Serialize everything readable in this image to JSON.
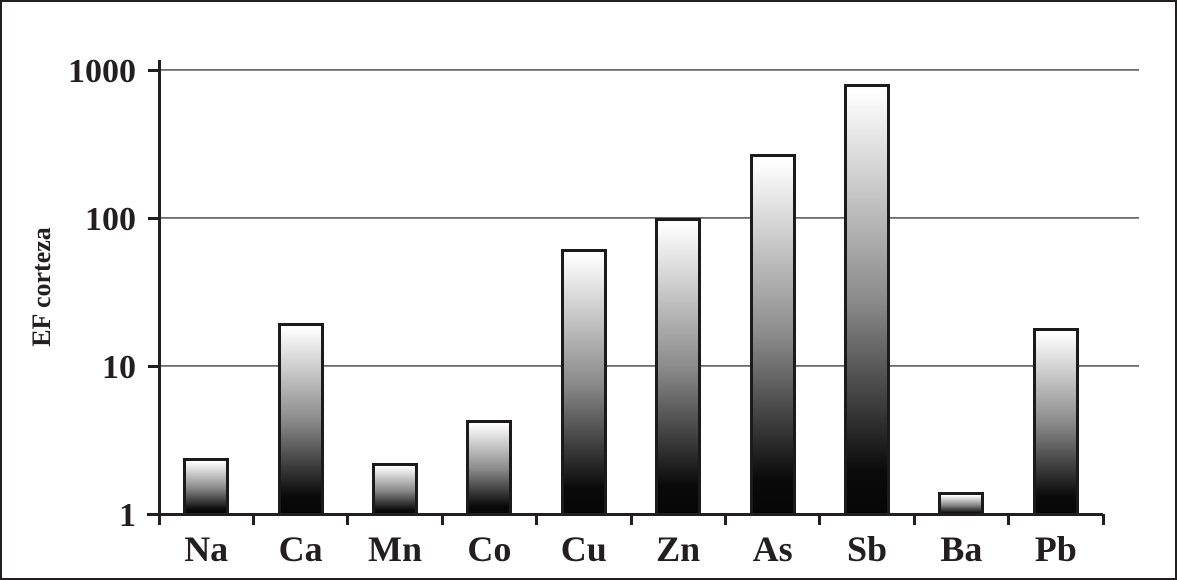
{
  "chart_data": {
    "type": "bar",
    "title": "",
    "xlabel": "",
    "ylabel": "EF corteza",
    "categories": [
      "Na",
      "Ca",
      "Mn",
      "Co",
      "Cu",
      "Zn",
      "As",
      "Sb",
      "Ba",
      "Pb"
    ],
    "values": [
      2.4,
      19.5,
      2.2,
      4.3,
      62,
      100,
      270,
      800,
      1.4,
      18
    ],
    "yscale": "log",
    "ylim": [
      1,
      1000
    ],
    "yticks": [
      1,
      10,
      100,
      1000
    ],
    "ytick_labels": [
      "1",
      "10",
      "100",
      "1000"
    ],
    "grid": "horizontal gridlines at each decade",
    "legend": "none",
    "bar_style": "vertical gradient, white at top to black at bottom, black outline",
    "colors": {
      "background": "#ffffff",
      "frame_border": "#231f20",
      "axis": "#231f20",
      "gridline": "#6e6e6e",
      "bar_border": "#1c1a1a",
      "bar_gradient_top": "#ffffff",
      "bar_gradient_bottom": "#060606",
      "text": "#231f20"
    }
  }
}
